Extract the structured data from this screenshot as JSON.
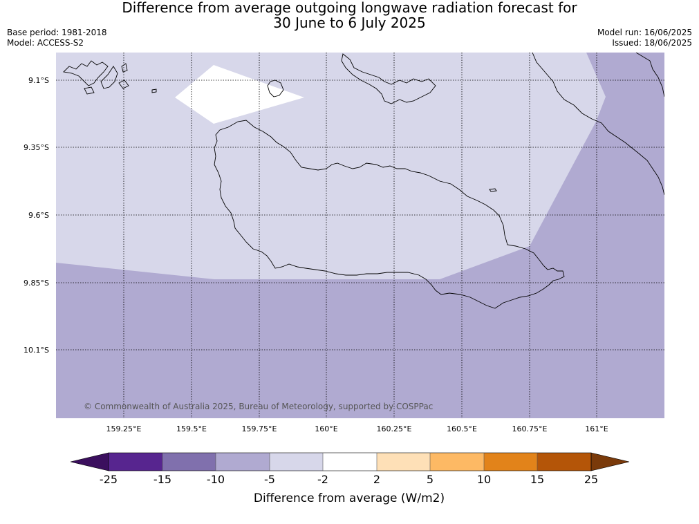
{
  "header": {
    "title_line1": "Difference from average outgoing longwave radiation forecast for",
    "title_line2": "30 June to 6 July 2025",
    "base_period": "Base period: 1981-2018",
    "model": "Model: ACCESS-S2",
    "model_run": "Model run: 16/06/2025",
    "issued": "Issued: 18/06/2025"
  },
  "map": {
    "copyright": "© Commonwealth of Australia 2025, Bureau of Meteorology, supported by COSPPac",
    "lat_labels": [
      "9.1°S",
      "9.35°S",
      "9.6°S",
      "9.85°S",
      "10.1°S"
    ],
    "lon_labels": [
      "159.25°E",
      "159.5°E",
      "159.75°E",
      "160°E",
      "160.25°E",
      "160.5°E",
      "160.75°E",
      "161°E"
    ],
    "colors": {
      "band_m10_m5": "#b0aad1",
      "band_m5_m2": "#d7d7ea",
      "band_m2_2": "#ffffff",
      "coast": "#000000"
    }
  },
  "colorbar": {
    "title": "Difference from average (W/m2)",
    "ticks": [
      "-25",
      "-15",
      "-10",
      "-5",
      "-2",
      "2",
      "5",
      "10",
      "15",
      "25"
    ],
    "under_color": "#3b0f5e",
    "over_color": "#7a3a0a",
    "colors": [
      "#57258f",
      "#8070ad",
      "#b0aad1",
      "#d7d7ea",
      "#ffffff",
      "#fee0b7",
      "#fdb964",
      "#e2831a",
      "#b45508"
    ]
  }
}
